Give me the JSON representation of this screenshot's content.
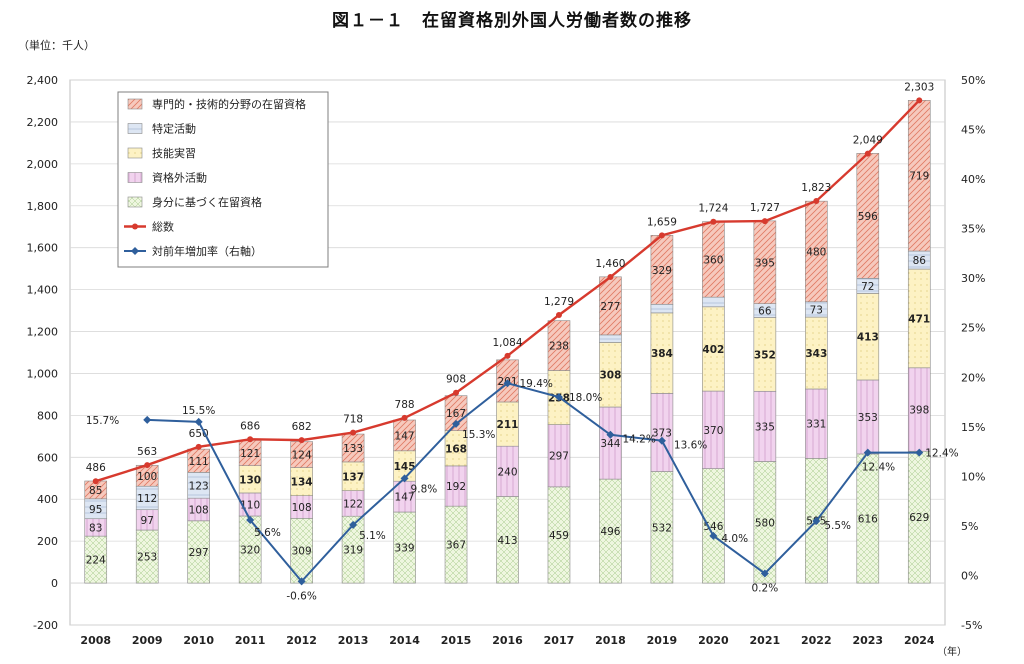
{
  "title": "図１－１　在留資格別外国人労働者数の推移",
  "unit_label": "（単位：千人）",
  "year_suffix": "（年）",
  "colors": {
    "senmon": "#f6c9bd",
    "senmon_hatch": "#e07a63",
    "tokutei": "#dde6f3",
    "tokutei_hatch": "#9fb2cf",
    "gino": "#fdf2c4",
    "gino_hatch": "#d9c36a",
    "shikakugai": "#f1d3ee",
    "shikakugai_hatch": "#c58fc0",
    "mibun": "#eef6df",
    "mibun_hatch": "#a7c98b",
    "total_line": "#d73a2e",
    "rate_line": "#2f5f9c",
    "grid": "#d9d9d9"
  },
  "chart_data": {
    "type": "bar",
    "stacked": true,
    "categories": [
      "2008",
      "2009",
      "2010",
      "2011",
      "2012",
      "2013",
      "2014",
      "2015",
      "2016",
      "2017",
      "2018",
      "2019",
      "2020",
      "2021",
      "2022",
      "2023",
      "2024"
    ],
    "series": [
      {
        "name": "身分に基づく在留資格",
        "values": [
          224,
          253,
          297,
          320,
          309,
          319,
          339,
          367,
          413,
          459,
          496,
          532,
          546,
          580,
          595,
          616,
          629
        ]
      },
      {
        "name": "資格外活動",
        "values": [
          83,
          97,
          108,
          110,
          108,
          122,
          147,
          192,
          240,
          297,
          344,
          373,
          370,
          335,
          331,
          353,
          398
        ]
      },
      {
        "name": "技能実習",
        "values": [
          null,
          null,
          null,
          130,
          134,
          137,
          145,
          168,
          211,
          258,
          308,
          384,
          402,
          352,
          343,
          413,
          471
        ]
      },
      {
        "name": "特定活動",
        "values": [
          95,
          112,
          123,
          null,
          null,
          null,
          null,
          null,
          null,
          null,
          36,
          41,
          46,
          66,
          73,
          72,
          86
        ]
      },
      {
        "name": "専門的・技術的分野の在留資格",
        "values": [
          85,
          100,
          111,
          121,
          124,
          133,
          147,
          167,
          201,
          238,
          277,
          329,
          360,
          395,
          480,
          596,
          719
        ]
      }
    ],
    "line_series": [
      {
        "name": "総数",
        "axis": "left",
        "values": [
          486,
          563,
          650,
          686,
          682,
          718,
          788,
          908,
          1084,
          1279,
          1460,
          1659,
          1724,
          1727,
          1823,
          2049,
          2303
        ],
        "labels": [
          "486",
          "563",
          "650",
          "686",
          "682",
          "718",
          "788",
          "908",
          "1,084",
          "1,279",
          "1,460",
          "1,659",
          "1,724",
          "1,727",
          "1,823",
          "2,049",
          "2,303"
        ]
      },
      {
        "name": "対前年増加率（右軸）",
        "axis": "right",
        "values": [
          null,
          15.7,
          15.5,
          5.6,
          -0.6,
          5.1,
          9.8,
          15.3,
          19.4,
          18.0,
          14.2,
          13.6,
          4.0,
          0.2,
          5.5,
          12.4,
          12.4
        ],
        "labels": [
          "",
          "15.7%",
          "15.5%",
          "5.6%",
          "-0.6%",
          "5.1%",
          "9.8%",
          "15.3%",
          "19.4%",
          "18.0%",
          "14.2%",
          "13.6%",
          "4.0%",
          "0.2%",
          "5.5%",
          "12.4%",
          "12.4%"
        ]
      }
    ],
    "ylim_left": [
      -200,
      2400
    ],
    "yticks_left": [
      "-200",
      "0",
      "200",
      "400",
      "600",
      "800",
      "1,000",
      "1,200",
      "1,400",
      "1,600",
      "1,800",
      "2,000",
      "2,200",
      "2,400"
    ],
    "ylim_right": [
      -5,
      50
    ],
    "yticks_right": [
      "-5%",
      "0%",
      "5%",
      "10%",
      "15%",
      "20%",
      "25%",
      "30%",
      "35%",
      "40%",
      "45%",
      "50%"
    ],
    "legend": [
      "専門的・技術的分野の在留資格",
      "特定活動",
      "技能実習",
      "資格外活動",
      "身分に基づく在留資格",
      "総数",
      "対前年増加率（右軸）"
    ],
    "legend_position": "top-left",
    "grid": true
  }
}
